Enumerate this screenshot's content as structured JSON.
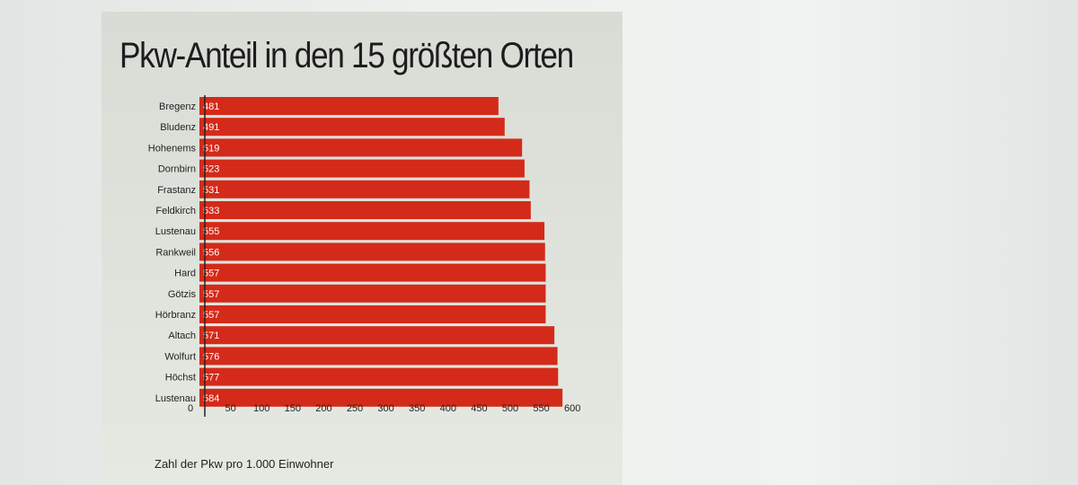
{
  "chart_data": {
    "type": "bar",
    "orientation": "horizontal",
    "title": "Pkw-Anteil in den 15 größten Orten",
    "xlabel": "Zahl der Pkw pro 1.000 Einwohner",
    "ylabel": "",
    "categories": [
      "Bregenz",
      "Bludenz",
      "Hohenems",
      "Dornbirn",
      "Frastanz",
      "Feldkirch",
      "Lustenau",
      "Rankweil",
      "Hard",
      "Götzis",
      "Hörbranz",
      "Altach",
      "Wolfurt",
      "Höchst",
      "Lustenau"
    ],
    "values": [
      481,
      491,
      519,
      523,
      531,
      533,
      555,
      556,
      557,
      557,
      557,
      571,
      576,
      577,
      584
    ],
    "xlim": [
      0,
      600
    ],
    "xticks": [
      0,
      50,
      100,
      150,
      200,
      250,
      300,
      350,
      400,
      450,
      500,
      550,
      600
    ],
    "bar_color": "#d42a1a",
    "value_label_color": "#ffffff",
    "grid": false
  }
}
